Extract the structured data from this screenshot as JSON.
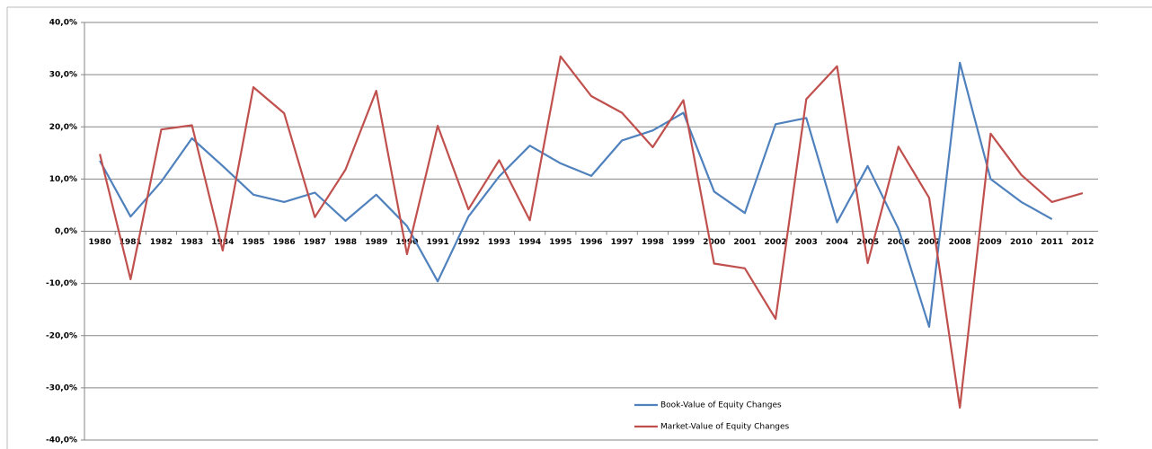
{
  "chart_data": {
    "type": "line",
    "categories": [
      "1980",
      "1981",
      "1982",
      "1983",
      "1984",
      "1985",
      "1986",
      "1987",
      "1988",
      "1989",
      "1990",
      "1991",
      "1992",
      "1993",
      "1994",
      "1995",
      "1996",
      "1997",
      "1998",
      "1999",
      "2000",
      "2001",
      "2002",
      "2003",
      "2004",
      "2005",
      "2006",
      "2007",
      "2008",
      "2009",
      "2010",
      "2011",
      "2012"
    ],
    "series": [
      {
        "name": "Book-Value of Equity Changes",
        "color": "#4f81bd",
        "values": [
          13.5,
          2.8,
          9.5,
          17.8,
          12.5,
          7,
          5.6,
          7.4,
          2,
          7,
          1,
          -9.6,
          2.8,
          10.5,
          16.4,
          13,
          10.6,
          17.4,
          19.3,
          22.7,
          7.6,
          3.5,
          20.5,
          21.7,
          1.7,
          12.5,
          0.5,
          -18.3,
          32.3,
          10,
          5.6,
          2.3,
          null
        ]
      },
      {
        "name": "Market-Value of Equity Changes",
        "color": "#c0504d",
        "values": [
          14.8,
          -9.2,
          19.5,
          20.3,
          -3.7,
          27.6,
          22.6,
          2.7,
          11.8,
          26.9,
          -4.4,
          20.2,
          4.2,
          13.6,
          2.1,
          33.5,
          25.9,
          22.7,
          16.1,
          25.1,
          -6.2,
          -7.1,
          -16.8,
          25.3,
          31.6,
          -6.1,
          16.2,
          6.4,
          -33.8,
          18.7,
          10.8,
          5.6,
          7.3
        ]
      }
    ],
    "ylim": [
      -40,
      40
    ],
    "yticks": [
      {
        "value": -40,
        "label": "-40,0%"
      },
      {
        "value": -30,
        "label": "-30,0%"
      },
      {
        "value": -20,
        "label": "-20,0%"
      },
      {
        "value": -10,
        "label": "-10,0%"
      },
      {
        "value": 0,
        "label": "0,0%"
      },
      {
        "value": 10,
        "label": "10,0%"
      },
      {
        "value": 20,
        "label": "20,0%"
      },
      {
        "value": 30,
        "label": "30,0%"
      },
      {
        "value": 40,
        "label": "40,0%"
      }
    ],
    "grid": true
  }
}
